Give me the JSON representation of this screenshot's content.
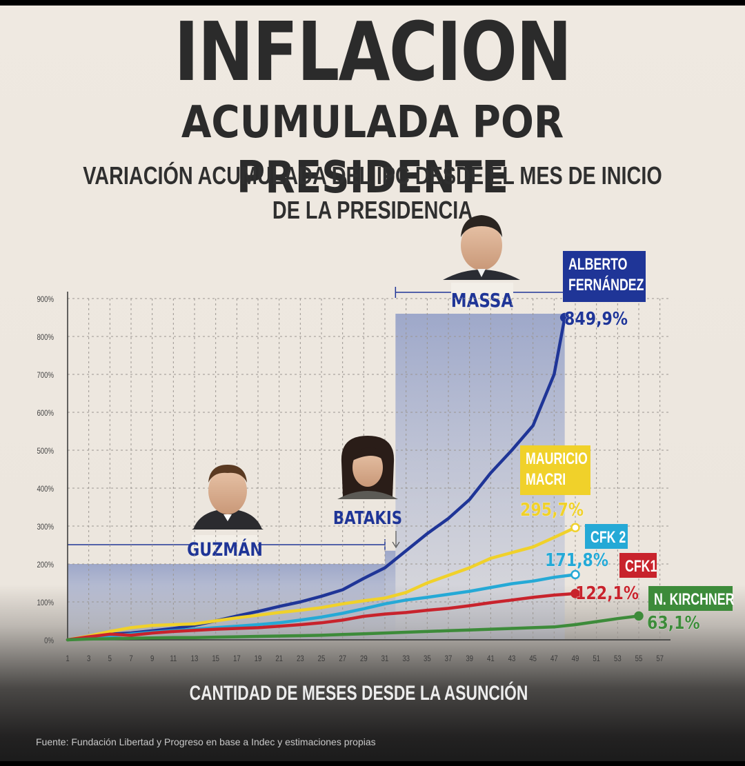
{
  "header": {
    "title": "INFLACION",
    "title_line2": "ACUMULADA POR PRESIDENTE",
    "subtitle": "VARIACIÓN ACUMULADA DEL IPC DESDE EL MES DE INICIO DE LA PRESIDENCIA"
  },
  "footer": {
    "source": "Fuente: Fundación Libertad y Progreso en base a Indec y estimaciones propias"
  },
  "chart_data": {
    "type": "line",
    "title": "INFLACION ACUMULADA POR PRESIDENTE",
    "subtitle": "VARIACIÓN ACUMULADA DEL IPC DESDE EL MES DE INICIO DE LA PRESIDENCIA",
    "xlabel": "CANTIDAD DE MESES DESDE LA ASUNCIÓN",
    "ylabel": "",
    "xlim": [
      1,
      58
    ],
    "ylim": [
      0,
      900
    ],
    "x_ticks": [
      1,
      3,
      5,
      7,
      9,
      11,
      13,
      15,
      17,
      19,
      21,
      23,
      25,
      27,
      29,
      31,
      33,
      35,
      37,
      39,
      41,
      43,
      45,
      47,
      49,
      51,
      53,
      55,
      57
    ],
    "y_ticks": [
      0,
      100,
      200,
      300,
      400,
      500,
      600,
      700,
      800,
      900
    ],
    "y_tick_labels": [
      "0%",
      "100%",
      "200%",
      "300%",
      "400%",
      "500%",
      "600%",
      "700%",
      "800%",
      "900%"
    ],
    "grid": true,
    "series": [
      {
        "name": "ALBERTO FERNÁNDEZ",
        "color": "#1f3597",
        "end_label": "849,9%",
        "points": [
          [
            1,
            0
          ],
          [
            3,
            8
          ],
          [
            5,
            15
          ],
          [
            7,
            18
          ],
          [
            9,
            24
          ],
          [
            11,
            30
          ],
          [
            13,
            38
          ],
          [
            15,
            50
          ],
          [
            17,
            63
          ],
          [
            19,
            75
          ],
          [
            21,
            88
          ],
          [
            23,
            100
          ],
          [
            25,
            115
          ],
          [
            27,
            132
          ],
          [
            29,
            162
          ],
          [
            31,
            190
          ],
          [
            33,
            235
          ],
          [
            35,
            280
          ],
          [
            37,
            320
          ],
          [
            39,
            370
          ],
          [
            41,
            440
          ],
          [
            43,
            500
          ],
          [
            45,
            565
          ],
          [
            47,
            700
          ],
          [
            48,
            850
          ]
        ]
      },
      {
        "name": "MAURICIO MACRI",
        "color": "#f0d12a",
        "end_label": "295,7%",
        "points": [
          [
            1,
            0
          ],
          [
            3,
            10
          ],
          [
            5,
            22
          ],
          [
            7,
            32
          ],
          [
            9,
            38
          ],
          [
            11,
            40
          ],
          [
            13,
            42
          ],
          [
            15,
            50
          ],
          [
            17,
            58
          ],
          [
            19,
            65
          ],
          [
            21,
            72
          ],
          [
            23,
            78
          ],
          [
            25,
            85
          ],
          [
            27,
            95
          ],
          [
            29,
            103
          ],
          [
            31,
            110
          ],
          [
            33,
            125
          ],
          [
            35,
            150
          ],
          [
            37,
            170
          ],
          [
            39,
            190
          ],
          [
            41,
            215
          ],
          [
            43,
            230
          ],
          [
            45,
            245
          ],
          [
            47,
            270
          ],
          [
            49,
            296
          ]
        ]
      },
      {
        "name": "CFK 2",
        "color": "#25a9d6",
        "end_label": "171,8%",
        "points": [
          [
            1,
            0
          ],
          [
            3,
            5
          ],
          [
            5,
            10
          ],
          [
            7,
            15
          ],
          [
            9,
            20
          ],
          [
            11,
            24
          ],
          [
            13,
            28
          ],
          [
            15,
            32
          ],
          [
            17,
            36
          ],
          [
            19,
            40
          ],
          [
            21,
            45
          ],
          [
            23,
            52
          ],
          [
            25,
            60
          ],
          [
            27,
            70
          ],
          [
            29,
            82
          ],
          [
            31,
            95
          ],
          [
            33,
            105
          ],
          [
            35,
            112
          ],
          [
            37,
            120
          ],
          [
            39,
            128
          ],
          [
            41,
            138
          ],
          [
            43,
            148
          ],
          [
            45,
            155
          ],
          [
            47,
            165
          ],
          [
            49,
            172
          ]
        ]
      },
      {
        "name": "CFK1",
        "color": "#c8232c",
        "end_label": "122,1%",
        "points": [
          [
            1,
            0
          ],
          [
            3,
            8
          ],
          [
            5,
            15
          ],
          [
            7,
            12
          ],
          [
            9,
            18
          ],
          [
            11,
            22
          ],
          [
            13,
            25
          ],
          [
            15,
            28
          ],
          [
            17,
            30
          ],
          [
            19,
            32
          ],
          [
            21,
            36
          ],
          [
            23,
            40
          ],
          [
            25,
            45
          ],
          [
            27,
            52
          ],
          [
            29,
            62
          ],
          [
            31,
            68
          ],
          [
            33,
            72
          ],
          [
            35,
            78
          ],
          [
            37,
            83
          ],
          [
            39,
            90
          ],
          [
            41,
            98
          ],
          [
            43,
            105
          ],
          [
            45,
            112
          ],
          [
            47,
            118
          ],
          [
            49,
            122
          ]
        ]
      },
      {
        "name": "N. KIRCHNER",
        "color": "#3d8b3a",
        "end_label": "63,1%",
        "points": [
          [
            1,
            0
          ],
          [
            3,
            2
          ],
          [
            5,
            3
          ],
          [
            7,
            4
          ],
          [
            9,
            5
          ],
          [
            11,
            6
          ],
          [
            13,
            6
          ],
          [
            15,
            7
          ],
          [
            17,
            8
          ],
          [
            19,
            9
          ],
          [
            21,
            10
          ],
          [
            23,
            11
          ],
          [
            25,
            12
          ],
          [
            27,
            14
          ],
          [
            29,
            16
          ],
          [
            31,
            18
          ],
          [
            33,
            20
          ],
          [
            35,
            22
          ],
          [
            37,
            24
          ],
          [
            39,
            26
          ],
          [
            41,
            28
          ],
          [
            43,
            30
          ],
          [
            45,
            32
          ],
          [
            47,
            34
          ],
          [
            49,
            40
          ],
          [
            51,
            48
          ],
          [
            53,
            56
          ],
          [
            55,
            63
          ]
        ]
      }
    ],
    "periods": [
      {
        "name": "GUZMÁN",
        "x_start": 1,
        "x_end": 31,
        "level": 200
      },
      {
        "name": "BATAKIS",
        "x_start": 31,
        "x_end": 32,
        "level": 235
      },
      {
        "name": "MASSA",
        "x_start": 32,
        "x_end": 48,
        "level": 860
      }
    ]
  }
}
